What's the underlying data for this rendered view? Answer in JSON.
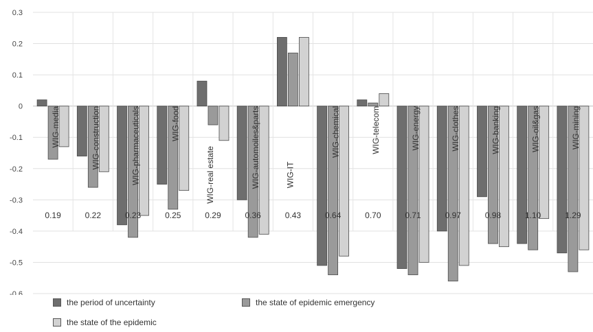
{
  "chart_data": {
    "type": "bar",
    "categories": [
      "WIG-media",
      "WIG-construction",
      "WIG-pharmaceuticals",
      "WIG-food",
      "WIG-real estate",
      "WIG-automoiles&parts",
      "WIG-IT",
      "WIG-chemical",
      "WIG-telecom",
      "WIG-energy",
      "WIG-clothes",
      "WIG-banking",
      "WIG-oil&gas",
      "WIG-mining"
    ],
    "category_values": [
      "0.19",
      "0.22",
      "0.23",
      "0.25",
      "0.29",
      "0.36",
      "0.43",
      "0.64",
      "0.70",
      "0.71",
      "0.97",
      "0.98",
      "1.10",
      "1.29"
    ],
    "series": [
      {
        "name": "the period of uncertainty",
        "color": "#6e6e6e",
        "values": [
          0.02,
          -0.16,
          -0.38,
          -0.25,
          0.08,
          -0.3,
          0.22,
          -0.51,
          0.02,
          -0.52,
          -0.4,
          -0.29,
          -0.44,
          -0.47
        ]
      },
      {
        "name": "the state of epidemic emergency",
        "color": "#9a9a9a",
        "values": [
          -0.17,
          -0.26,
          -0.42,
          -0.33,
          -0.06,
          -0.42,
          0.17,
          -0.54,
          0.01,
          -0.54,
          -0.56,
          -0.44,
          -0.46,
          -0.53
        ]
      },
      {
        "name": "the state of the epidemic",
        "color": "#d2d2d2",
        "values": [
          -0.13,
          -0.21,
          -0.35,
          -0.27,
          -0.11,
          -0.41,
          0.22,
          -0.48,
          0.04,
          -0.5,
          -0.51,
          -0.45,
          -0.36,
          -0.46
        ]
      }
    ],
    "ylim": [
      -0.6,
      0.3
    ],
    "yticks": [
      "0.3",
      "0.2",
      "0.1",
      "0",
      "-0.1",
      "-0.2",
      "-0.3",
      "-0.4",
      "-0.5",
      "-0.6"
    ],
    "grid": true,
    "legend_position": "bottom-left"
  }
}
